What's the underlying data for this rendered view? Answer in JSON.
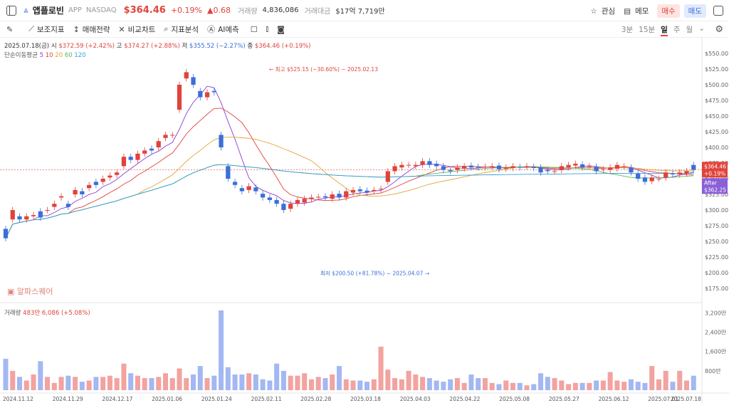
{
  "header": {
    "name": "앱플로빈",
    "ticker": "APP",
    "exchange": "NASDAQ",
    "price": "$364.46",
    "change_pct": "+0.19%",
    "change_abs": "▲0.68",
    "volume_label": "거래량",
    "volume": "4,836,086",
    "amount_label": "거래대금",
    "amount": "$17억 7,719만",
    "watch_label": "관심",
    "memo_label": "메모",
    "buy_label": "매수",
    "sell_label": "매도"
  },
  "toolbar": {
    "items": [
      "보조지표",
      "매매전략",
      "비교차트",
      "지표분석",
      "AI예측"
    ],
    "periods": [
      "3분",
      "15분",
      "일",
      "주",
      "월"
    ],
    "active_period": "일"
  },
  "info": {
    "date": "2025.07.18(금)",
    "open_label": "시",
    "open": "$372.59 (+2.42%)",
    "high_label": "고",
    "high": "$374.27 (+2.88%)",
    "low_label": "저",
    "low": "$355.52 (−2.27%)",
    "close_label": "종",
    "close": "$364.46 (+0.19%)",
    "ma_label": "단순이동평균",
    "ma_periods": [
      "5",
      "10",
      "20",
      "60",
      "120"
    ]
  },
  "volume_info": {
    "label": "거래량",
    "value": "483만 6,086 (+5.08%)"
  },
  "watermark": "알파스퀘어",
  "chart_data": {
    "type": "candlestick",
    "x_tick_labels": [
      "2024.11.12",
      "2024.11.29",
      "2024.12.17",
      "2025.01.06",
      "2025.01.24",
      "2025.02.11",
      "2025.02.28",
      "2025.03.18",
      "2025.04.03",
      "2025.04.22",
      "2025.05.08",
      "2025.05.27",
      "2025.06.12",
      "2025.07.01",
      "2025.07.18"
    ],
    "y_ticks": [
      "$550.00",
      "$525.00",
      "$500.00",
      "$475.00",
      "$450.00",
      "$425.00",
      "$400.00",
      "$375.00",
      "$350.00",
      "$325.00",
      "$300.00",
      "$275.00",
      "$250.00",
      "$225.00",
      "$200.00",
      "$175.00"
    ],
    "ylim": [
      160,
      560
    ],
    "volume_ticks": [
      "3,200만",
      "2,400만",
      "1,600만",
      "800만"
    ],
    "volume_ylim": [
      0,
      3300
    ],
    "annotations": {
      "high": "최고 $525.15 (−30.60%) − 2025.02.13",
      "low": "최저 $200.50 (+81.78%) − 2025.04.07"
    },
    "price_tag": {
      "price": "$364.46",
      "pct": "+0.19%"
    },
    "after_tag": {
      "label": "After",
      "price": "$362.25"
    },
    "closes": [
      255,
      300,
      285,
      290,
      292,
      288,
      300,
      310,
      322,
      305,
      332,
      325,
      340,
      340,
      350,
      355,
      360,
      385,
      380,
      390,
      395,
      395,
      410,
      420,
      420,
      500,
      520,
      500,
      480,
      488,
      488,
      400,
      350,
      340,
      330,
      338,
      330,
      320,
      316,
      310,
      300,
      310,
      316,
      318,
      320,
      321,
      320,
      325,
      320,
      330,
      332,
      330,
      328,
      332,
      334,
      362,
      370,
      372,
      372,
      372,
      378,
      372,
      370,
      364,
      362,
      368,
      370,
      368,
      368,
      369,
      370,
      365,
      368,
      370,
      368,
      370,
      367,
      360,
      362,
      362,
      370,
      372,
      374,
      368,
      370,
      362,
      365,
      368,
      372,
      370,
      360,
      350,
      345,
      352,
      350,
      360,
      357,
      360,
      362,
      364
    ],
    "opens": [
      270,
      285,
      290,
      285,
      290,
      298,
      300,
      305,
      320,
      310,
      325,
      330,
      335,
      345,
      345,
      352,
      356,
      370,
      385,
      380,
      390,
      398,
      400,
      415,
      420,
      460,
      510,
      512,
      490,
      480,
      490,
      420,
      370,
      345,
      335,
      332,
      336,
      326,
      320,
      316,
      310,
      302,
      310,
      312,
      318,
      321,
      322,
      318,
      326,
      320,
      328,
      333,
      331,
      330,
      333,
      345,
      362,
      368,
      372,
      370,
      372,
      378,
      374,
      370,
      364,
      364,
      366,
      371,
      369,
      368,
      369,
      371,
      366,
      367,
      369,
      369,
      369,
      368,
      364,
      362,
      364,
      368,
      371,
      373,
      370,
      369,
      364,
      364,
      366,
      370,
      368,
      358,
      352,
      346,
      350,
      352,
      358,
      357,
      358,
      372
    ],
    "volumes": [
      1300,
      800,
      550,
      400,
      650,
      1200,
      550,
      300,
      550,
      600,
      550,
      350,
      400,
      550,
      550,
      600,
      500,
      1100,
      700,
      600,
      500,
      500,
      550,
      700,
      500,
      900,
      500,
      650,
      1000,
      500,
      600,
      3300,
      950,
      650,
      650,
      700,
      650,
      450,
      400,
      1100,
      800,
      600,
      600,
      700,
      450,
      550,
      500,
      650,
      1000,
      450,
      400,
      400,
      350,
      450,
      1800,
      850,
      500,
      450,
      800,
      650,
      550,
      500,
      400,
      350,
      450,
      500,
      300,
      650,
      500,
      500,
      300,
      250,
      400,
      300,
      300,
      200,
      250,
      700,
      550,
      500,
      400,
      250,
      300,
      300,
      300,
      400,
      400,
      750,
      400,
      350,
      450,
      350,
      300,
      1000,
      450,
      800,
      350,
      800,
      400,
      600
    ]
  }
}
